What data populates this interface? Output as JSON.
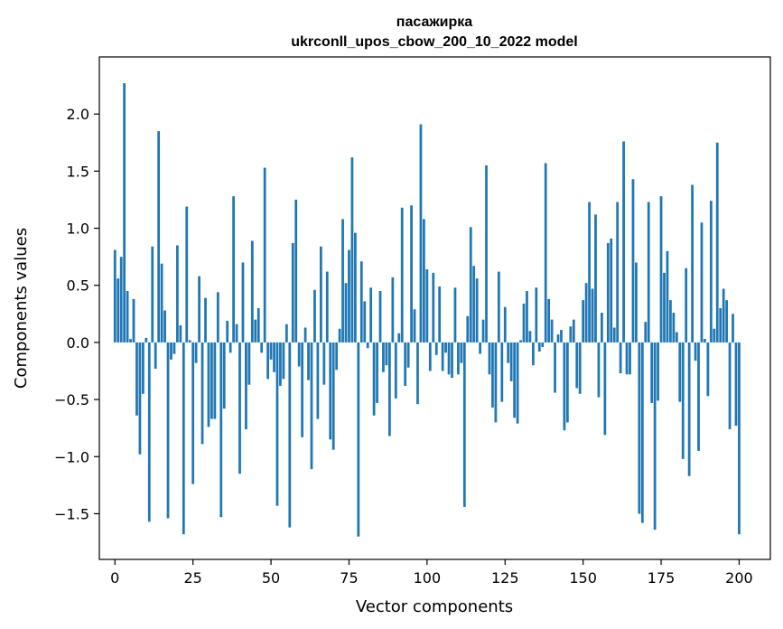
{
  "chart_data": {
    "type": "bar",
    "title": "пасажирка",
    "subtitle": "ukrconll_upos_cbow_200_10_2022 model",
    "xlabel": "Vector components",
    "ylabel": "Components values",
    "xlim": [
      -5,
      210
    ],
    "ylim": [
      -1.9,
      2.5
    ],
    "xticks": [
      0,
      25,
      50,
      75,
      100,
      125,
      150,
      175,
      200
    ],
    "yticks": [
      -1.5,
      -1.0,
      -0.5,
      0.0,
      0.5,
      1.0,
      1.5,
      2.0
    ],
    "ytick_labels": [
      "−1.5",
      "−1.0",
      "−0.5",
      "0.0",
      "0.5",
      "1.0",
      "1.5",
      "2.0"
    ],
    "grid": false,
    "bar_color": "#1f77b4",
    "values": [
      0.81,
      0.56,
      0.75,
      2.27,
      0.45,
      0.03,
      0.38,
      -0.64,
      -0.98,
      -0.45,
      0.04,
      -1.57,
      0.84,
      -0.23,
      1.85,
      0.69,
      0.28,
      -1.54,
      -0.15,
      -0.1,
      0.85,
      0.15,
      -1.68,
      1.19,
      0.02,
      -1.24,
      -0.18,
      0.58,
      -0.89,
      0.39,
      -0.74,
      -0.67,
      -0.67,
      0.44,
      -1.53,
      -0.58,
      0.19,
      -0.09,
      1.28,
      0.16,
      -1.15,
      0.7,
      -0.76,
      -0.37,
      0.89,
      0.2,
      0.3,
      -0.09,
      1.53,
      -0.32,
      -0.15,
      -0.26,
      -1.43,
      -0.38,
      -0.32,
      0.16,
      -1.62,
      0.87,
      1.25,
      -0.21,
      -0.83,
      0.13,
      -0.33,
      -1.11,
      0.46,
      -0.67,
      0.84,
      -0.37,
      0.62,
      -0.85,
      -0.94,
      -0.24,
      0.12,
      1.08,
      0.52,
      0.81,
      1.62,
      0.96,
      -1.7,
      0.71,
      0.36,
      -0.05,
      0.48,
      -0.64,
      -0.53,
      0.45,
      -0.26,
      -0.2,
      -0.82,
      0.57,
      -0.49,
      0.08,
      1.18,
      -0.38,
      -0.22,
      1.2,
      0.29,
      -0.54,
      1.91,
      1.08,
      0.64,
      -0.25,
      0.61,
      -0.11,
      0.49,
      -0.25,
      -0.09,
      -0.28,
      -0.31,
      0.48,
      -0.28,
      -0.18,
      -1.44,
      0.23,
      1.01,
      0.67,
      0.56,
      -0.1,
      0.2,
      1.55,
      -0.28,
      -0.57,
      -0.7,
      0.62,
      -0.52,
      0.31,
      -0.18,
      -0.34,
      -0.66,
      -0.71,
      0.02,
      0.34,
      0.45,
      0.1,
      -0.2,
      0.48,
      -0.08,
      -0.04,
      1.57,
      0.38,
      0.2,
      -0.44,
      0.07,
      0.11,
      -0.77,
      -0.7,
      0.14,
      0.2,
      -0.4,
      -0.45,
      0.37,
      0.52,
      1.23,
      0.47,
      1.12,
      -0.48,
      0.26,
      -0.81,
      0.87,
      0.91,
      0.13,
      1.23,
      -0.27,
      1.76,
      -0.28,
      -0.28,
      1.43,
      0.7,
      -1.5,
      -1.58,
      0.18,
      1.23,
      -0.53,
      -1.64,
      -0.51,
      1.28,
      0.61,
      0.8,
      0.37,
      0.26,
      0.09,
      -0.52,
      -1.02,
      0.65,
      -1.17,
      1.38,
      -0.16,
      -0.95,
      1.05,
      0.03,
      -0.47,
      1.24,
      0.12,
      1.75,
      0.3,
      0.47,
      0.37,
      -0.76,
      0.25,
      -0.73,
      -1.68
    ]
  }
}
